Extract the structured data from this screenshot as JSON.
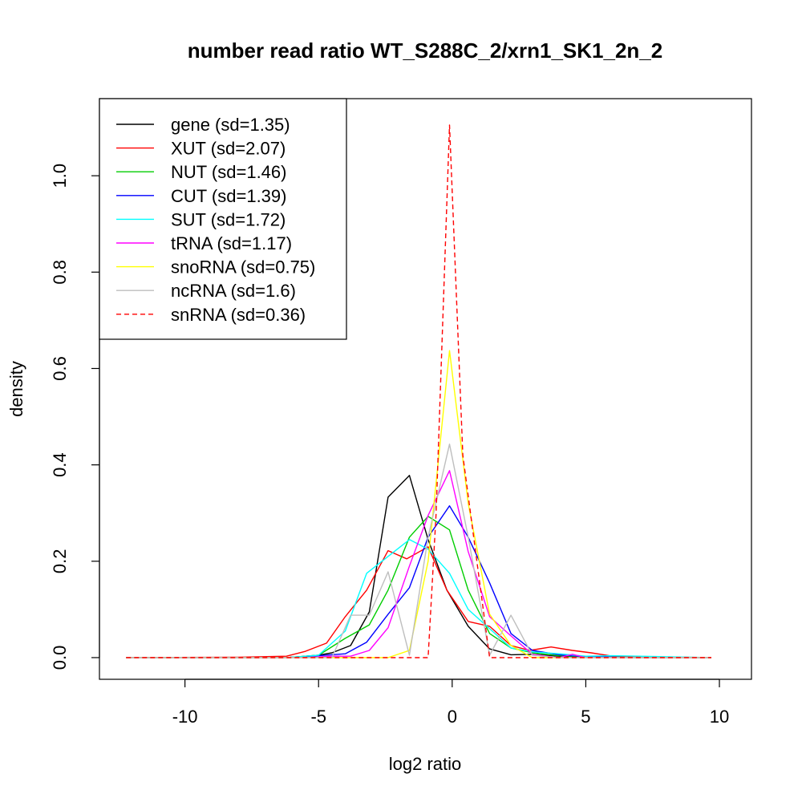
{
  "chart_data": {
    "type": "line",
    "title": "number read ratio WT_S288C_2/xrn1_SK1_2n_2",
    "xlabel": "log2 ratio",
    "ylabel": "density",
    "xlim": [
      -13.2,
      11.2
    ],
    "ylim": [
      -0.045,
      1.16
    ],
    "x_ticks": [
      -10,
      -5,
      0,
      5,
      10
    ],
    "x_tick_labels": [
      "-10",
      "-5",
      "0",
      "5",
      "10"
    ],
    "y_ticks": [
      0.0,
      0.2,
      0.4,
      0.6,
      0.8,
      1.0
    ],
    "y_tick_labels": [
      "0.0",
      "0.2",
      "0.4",
      "0.6",
      "0.8",
      "1.0"
    ],
    "grid": false,
    "legend_position": "top-left",
    "series": [
      {
        "name": "gene (sd=1.35)",
        "color": "#000000",
        "dash": "solid",
        "x": [
          -12.2,
          -6.2,
          -5.0,
          -4.5,
          -3.8,
          -3.1,
          -2.4,
          -1.6,
          -0.9,
          -0.2,
          0.6,
          1.4,
          2.2,
          3.0,
          4.0,
          5.0,
          7.0,
          9.7
        ],
        "y": [
          0,
          0,
          0.005,
          0.01,
          0.025,
          0.095,
          0.333,
          0.378,
          0.245,
          0.14,
          0.065,
          0.018,
          0.006,
          0.007,
          0.003,
          0.001,
          0,
          0
        ]
      },
      {
        "name": "XUT (sd=2.07)",
        "color": "#ff0000",
        "dash": "solid",
        "x": [
          -12.2,
          -8.0,
          -6.2,
          -5.5,
          -4.7,
          -4.0,
          -3.2,
          -2.4,
          -1.7,
          -0.9,
          -0.2,
          0.6,
          1.4,
          2.2,
          2.9,
          3.7,
          4.5,
          5.2,
          6.0,
          7.0,
          9.7
        ],
        "y": [
          0,
          0.001,
          0.003,
          0.013,
          0.03,
          0.085,
          0.14,
          0.222,
          0.205,
          0.23,
          0.14,
          0.075,
          0.065,
          0.025,
          0.015,
          0.022,
          0.015,
          0.01,
          0.003,
          0.002,
          0
        ]
      },
      {
        "name": "NUT (sd=1.46)",
        "color": "#00cd00",
        "dash": "solid",
        "x": [
          -12.2,
          -6.2,
          -5.0,
          -4.0,
          -3.1,
          -2.4,
          -1.6,
          -0.9,
          -0.1,
          0.6,
          1.4,
          2.2,
          3.0,
          4.0,
          5.0,
          7.0,
          9.7
        ],
        "y": [
          0,
          0,
          0.005,
          0.04,
          0.068,
          0.14,
          0.25,
          0.293,
          0.265,
          0.14,
          0.05,
          0.02,
          0.01,
          0.004,
          0.002,
          0,
          0
        ]
      },
      {
        "name": "CUT (sd=1.39)",
        "color": "#0000ff",
        "dash": "solid",
        "x": [
          -12.2,
          -6.2,
          -5.0,
          -4.0,
          -3.2,
          -2.4,
          -1.6,
          -0.9,
          -0.1,
          0.6,
          1.4,
          2.2,
          3.0,
          4.0,
          5.0,
          7.0,
          9.7
        ],
        "y": [
          0,
          0,
          0.004,
          0.008,
          0.032,
          0.09,
          0.145,
          0.25,
          0.315,
          0.25,
          0.155,
          0.05,
          0.015,
          0.006,
          0.002,
          0,
          0
        ]
      },
      {
        "name": "SUT (sd=1.72)",
        "color": "#00ffff",
        "dash": "solid",
        "x": [
          -12.2,
          -6.2,
          -5.0,
          -4.0,
          -3.2,
          -2.4,
          -1.6,
          -0.9,
          -0.1,
          0.6,
          1.4,
          2.2,
          3.0,
          4.0,
          5.0,
          6.0,
          7.0,
          9.7
        ],
        "y": [
          0,
          0,
          0.005,
          0.055,
          0.175,
          0.21,
          0.245,
          0.225,
          0.175,
          0.1,
          0.06,
          0.02,
          0.012,
          0.008,
          0.003,
          0.004,
          0.003,
          0
        ]
      },
      {
        "name": "tRNA (sd=1.17)",
        "color": "#ff00ff",
        "dash": "solid",
        "x": [
          -12.2,
          -5.5,
          -4.5,
          -3.8,
          -3.1,
          -2.4,
          -1.6,
          -0.9,
          -0.1,
          0.6,
          1.4,
          2.2,
          3.0,
          4.0,
          4.5,
          5.0,
          9.7
        ],
        "y": [
          0,
          0,
          0.003,
          0.003,
          0.015,
          0.062,
          0.19,
          0.295,
          0.388,
          0.22,
          0.085,
          0.045,
          0.007,
          0,
          0.007,
          0,
          0
        ]
      },
      {
        "name": "snoRNA (sd=0.75)",
        "color": "#ffff00",
        "dash": "solid",
        "x": [
          -12.2,
          -2.4,
          -1.6,
          -0.9,
          -0.1,
          0.6,
          1.4,
          2.2,
          3.0,
          9.7
        ],
        "y": [
          0,
          0,
          0.015,
          0.2,
          0.637,
          0.32,
          0.09,
          0.025,
          0,
          0
        ]
      },
      {
        "name": "ncRNA (sd=1.6)",
        "color": "#bebebe",
        "dash": "solid",
        "x": [
          -12.2,
          -4.5,
          -3.8,
          -3.1,
          -2.4,
          -1.6,
          -0.9,
          -0.1,
          0.6,
          1.4,
          2.2,
          3.0,
          4.0,
          9.7
        ],
        "y": [
          0,
          0,
          0.088,
          0.088,
          0.178,
          0.005,
          0.25,
          0.443,
          0.25,
          0.005,
          0.088,
          0.005,
          0,
          0
        ]
      },
      {
        "name": "snRNA (sd=0.36)",
        "color": "#ff0000",
        "dash": "dashed",
        "x": [
          -12.2,
          -0.9,
          -0.6,
          -0.1,
          0.4,
          1.4,
          9.7
        ],
        "y": [
          0,
          0,
          0.3,
          1.105,
          0.42,
          0,
          0
        ]
      }
    ]
  }
}
